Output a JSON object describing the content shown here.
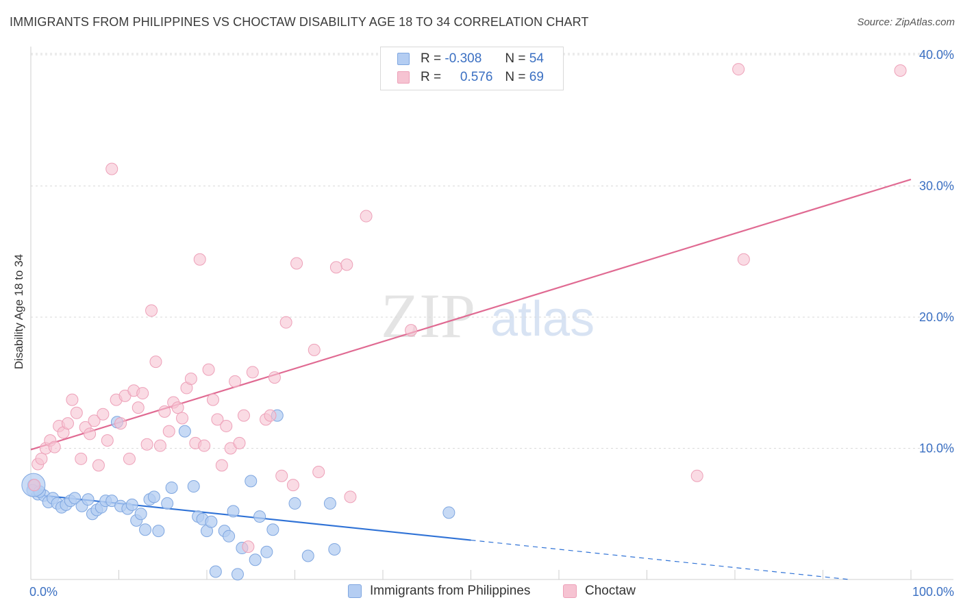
{
  "header": {
    "title": "IMMIGRANTS FROM PHILIPPINES VS CHOCTAW DISABILITY AGE 18 TO 34 CORRELATION CHART",
    "source": "Source: ZipAtlas.com"
  },
  "watermark": {
    "part1": "ZIP",
    "part2": "atlas"
  },
  "legend": {
    "rows": [
      {
        "r_label": "R =",
        "r_value": "-0.308",
        "n_label": "N =",
        "n_value": "54"
      },
      {
        "r_label": "R =",
        "r_value": "0.576",
        "n_label": "N =",
        "n_value": "69"
      }
    ]
  },
  "bottom_legend": {
    "series1": "Immigrants from Philippines",
    "series2": "Choctaw"
  },
  "colors": {
    "blue_fill": "#b4cdf2",
    "blue_stroke": "#7ea6e0",
    "blue_line": "#2f72d6",
    "pink_fill": "#f6c3d2",
    "pink_stroke": "#eda0b8",
    "pink_line": "#e06a92",
    "tick_label": "#3a6fc2",
    "grid": "#d9d9d9"
  },
  "chart_data": {
    "type": "scatter",
    "title": "IMMIGRANTS FROM PHILIPPINES VS CHOCTAW DISABILITY AGE 18 TO 34 CORRELATION CHART",
    "ylabel": "Disability Age 18 to 34",
    "xlabel": "",
    "xlim": [
      0,
      100
    ],
    "ylim": [
      0,
      40
    ],
    "x_tick_labels": [
      "0.0%",
      "100.0%"
    ],
    "y_ticks": [
      10,
      20,
      30,
      40
    ],
    "y_tick_labels": [
      "10.0%",
      "20.0%",
      "30.0%",
      "40.0%"
    ],
    "grid": true,
    "legend_position": "top-center",
    "series": [
      {
        "name": "Immigrants from Philippines",
        "r": -0.308,
        "n": 54,
        "trend": {
          "x_start": 0,
          "y_start": 6.5,
          "x_solid_end": 50,
          "y_solid_end": 3.0,
          "x_dash_end": 93,
          "y_dash_end": 0.0
        },
        "points": [
          [
            0.3,
            7.2
          ],
          [
            0.8,
            6.5
          ],
          [
            1.5,
            6.4
          ],
          [
            2.0,
            5.9
          ],
          [
            2.5,
            6.2
          ],
          [
            3.0,
            5.8
          ],
          [
            3.5,
            5.5
          ],
          [
            4.0,
            5.7
          ],
          [
            4.5,
            6.0
          ],
          [
            5.0,
            6.2
          ],
          [
            5.8,
            5.6
          ],
          [
            6.5,
            6.1
          ],
          [
            7.0,
            5.0
          ],
          [
            7.5,
            5.3
          ],
          [
            8.0,
            5.5
          ],
          [
            8.5,
            6.0
          ],
          [
            9.2,
            6.0
          ],
          [
            9.8,
            12.0
          ],
          [
            10.2,
            5.6
          ],
          [
            11.0,
            5.4
          ],
          [
            11.5,
            5.7
          ],
          [
            12.0,
            4.5
          ],
          [
            12.5,
            5.0
          ],
          [
            13.0,
            3.8
          ],
          [
            13.5,
            6.1
          ],
          [
            14.0,
            6.3
          ],
          [
            14.5,
            3.7
          ],
          [
            15.5,
            5.8
          ],
          [
            16.0,
            7.0
          ],
          [
            17.5,
            11.3
          ],
          [
            18.5,
            7.1
          ],
          [
            19.0,
            4.8
          ],
          [
            19.5,
            4.6
          ],
          [
            20.0,
            3.7
          ],
          [
            20.5,
            4.4
          ],
          [
            21.0,
            0.6
          ],
          [
            22.0,
            3.7
          ],
          [
            22.5,
            3.3
          ],
          [
            23.0,
            5.2
          ],
          [
            23.5,
            0.4
          ],
          [
            24.0,
            2.4
          ],
          [
            25.0,
            7.5
          ],
          [
            25.5,
            1.5
          ],
          [
            26.0,
            4.8
          ],
          [
            26.8,
            2.1
          ],
          [
            27.5,
            3.8
          ],
          [
            28.0,
            12.5
          ],
          [
            30.0,
            5.8
          ],
          [
            31.5,
            1.8
          ],
          [
            34.0,
            5.8
          ],
          [
            34.5,
            2.3
          ],
          [
            47.5,
            5.1
          ],
          [
            0.2,
            6.8
          ],
          [
            1.0,
            6.7
          ]
        ]
      },
      {
        "name": "Choctaw",
        "r": 0.576,
        "n": 69,
        "trend": {
          "x_start": 0,
          "y_start": 9.9,
          "x_end": 100,
          "y_end": 30.5
        },
        "points": [
          [
            0.4,
            7.2
          ],
          [
            0.8,
            8.8
          ],
          [
            1.2,
            9.2
          ],
          [
            1.7,
            10.0
          ],
          [
            2.2,
            10.6
          ],
          [
            2.7,
            10.1
          ],
          [
            3.2,
            11.7
          ],
          [
            3.7,
            11.2
          ],
          [
            4.2,
            11.9
          ],
          [
            4.7,
            13.7
          ],
          [
            5.2,
            12.7
          ],
          [
            5.7,
            9.2
          ],
          [
            6.2,
            11.6
          ],
          [
            6.7,
            11.1
          ],
          [
            7.2,
            12.1
          ],
          [
            7.7,
            8.7
          ],
          [
            8.2,
            12.6
          ],
          [
            8.7,
            10.6
          ],
          [
            9.2,
            31.3
          ],
          [
            9.7,
            13.7
          ],
          [
            10.2,
            11.9
          ],
          [
            10.7,
            14.0
          ],
          [
            11.2,
            9.2
          ],
          [
            11.7,
            14.4
          ],
          [
            12.2,
            13.1
          ],
          [
            12.7,
            14.2
          ],
          [
            13.2,
            10.3
          ],
          [
            13.7,
            20.5
          ],
          [
            14.2,
            16.6
          ],
          [
            14.7,
            10.2
          ],
          [
            15.2,
            12.8
          ],
          [
            15.7,
            11.3
          ],
          [
            16.2,
            13.5
          ],
          [
            16.7,
            13.1
          ],
          [
            17.2,
            12.3
          ],
          [
            17.7,
            14.6
          ],
          [
            18.2,
            15.3
          ],
          [
            18.7,
            10.4
          ],
          [
            19.2,
            24.4
          ],
          [
            19.7,
            10.2
          ],
          [
            20.2,
            16.0
          ],
          [
            20.7,
            13.7
          ],
          [
            21.2,
            12.2
          ],
          [
            21.7,
            8.7
          ],
          [
            22.2,
            11.7
          ],
          [
            22.7,
            10.0
          ],
          [
            23.2,
            15.1
          ],
          [
            23.7,
            10.4
          ],
          [
            24.2,
            12.5
          ],
          [
            24.7,
            2.5
          ],
          [
            25.2,
            15.8
          ],
          [
            26.7,
            12.2
          ],
          [
            27.2,
            12.5
          ],
          [
            27.7,
            15.4
          ],
          [
            28.5,
            7.9
          ],
          [
            29.0,
            19.6
          ],
          [
            29.8,
            7.2
          ],
          [
            30.2,
            24.1
          ],
          [
            32.2,
            17.5
          ],
          [
            32.7,
            8.2
          ],
          [
            34.7,
            23.8
          ],
          [
            35.9,
            24.0
          ],
          [
            36.3,
            6.3
          ],
          [
            38.1,
            27.7
          ],
          [
            43.2,
            19.0
          ],
          [
            75.7,
            7.9
          ],
          [
            80.4,
            38.9
          ],
          [
            81.0,
            24.4
          ],
          [
            98.8,
            38.8
          ]
        ]
      }
    ]
  }
}
